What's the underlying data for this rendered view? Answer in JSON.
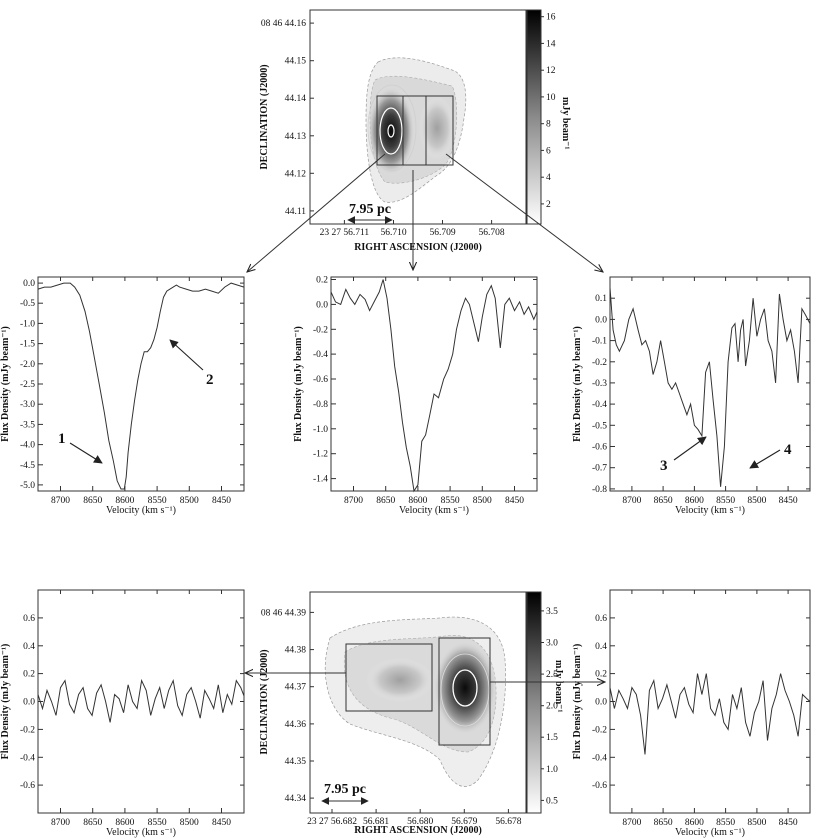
{
  "images": [
    {
      "id": "top",
      "dec_ticks": [
        "08 46 44.16",
        "44.15",
        "44.14",
        "44.13",
        "44.12",
        "44.11"
      ],
      "dec_values": [
        44.16,
        44.15,
        44.14,
        44.13,
        44.12,
        44.11
      ],
      "ra_ticks": [
        "23 27 56.711",
        "56.710",
        "56.709",
        "56.708"
      ],
      "ra_values": [
        56.711,
        56.71,
        56.709,
        56.708
      ],
      "ylabel": "DECLINATION (J2000)",
      "xlabel": "RIGHT ASCENSION (J2000)",
      "colorbar_ticks": [
        "2",
        "4",
        "6",
        "8",
        "10",
        "12",
        "14",
        "16"
      ],
      "colorbar_values": [
        2,
        4,
        6,
        8,
        10,
        12,
        14,
        16
      ],
      "colorbar_range": [
        0.5,
        16.5
      ],
      "colorbar_label": "mJy beam⁻¹",
      "scale_bar": "7.95 pc"
    },
    {
      "id": "bottom",
      "dec_ticks": [
        "08 46 44.39",
        "44.38",
        "44.37",
        "44.36",
        "44.35",
        "44.34"
      ],
      "dec_values": [
        44.39,
        44.38,
        44.37,
        44.36,
        44.35,
        44.34
      ],
      "ra_ticks": [
        "23 27 56.682",
        "56.681",
        "56.680",
        "56.679",
        "56.678"
      ],
      "ra_values": [
        56.682,
        56.681,
        56.68,
        56.679,
        56.678
      ],
      "ylabel": "DECLINATION (J2000)",
      "xlabel": "RIGHT ASCENSION (J2000)",
      "colorbar_ticks": [
        "0.5",
        "1.0",
        "1.5",
        "2.0",
        "2.5",
        "3.0",
        "3.5"
      ],
      "colorbar_values": [
        0.5,
        1.0,
        1.5,
        2.0,
        2.5,
        3.0,
        3.5
      ],
      "colorbar_range": [
        0.3,
        3.8
      ],
      "colorbar_label": "mJy beam⁻¹",
      "scale_bar": "7.95 pc"
    }
  ],
  "annotations": {
    "feature_1": "1",
    "feature_2": "2",
    "feature_3": "3",
    "feature_4": "4"
  },
  "chart_data": [
    {
      "type": "line",
      "id": "spec-top-left",
      "xlabel": "Velocity (km s⁻¹)",
      "ylabel": "Flux Density (mJy beam⁻¹)",
      "xlim": [
        8735,
        8415
      ],
      "ylim": [
        -5.15,
        0.15
      ],
      "xticks": [
        8700,
        8650,
        8600,
        8550,
        8500,
        8450
      ],
      "xtick_labels": [
        "8700",
        "8650",
        "8600",
        "8550",
        "8500",
        "8450"
      ],
      "yticks": [
        0.0,
        -0.5,
        -1.0,
        -1.5,
        -2.0,
        -2.5,
        -3.0,
        -3.5,
        -4.0,
        -4.5,
        -5.0
      ],
      "ytick_labels": [
        "0.0",
        "-0.5",
        "-1.0",
        "-1.5",
        "-2.0",
        "-2.5",
        "-3.0",
        "-3.5",
        "-4.0",
        "-4.5",
        "-5.0"
      ],
      "x": [
        8735,
        8725,
        8715,
        8705,
        8695,
        8685,
        8678,
        8670,
        8662,
        8655,
        8648,
        8640,
        8632,
        8625,
        8618,
        8612,
        8606,
        8601,
        8598,
        8595,
        8590,
        8585,
        8580,
        8575,
        8570,
        8565,
        8560,
        8555,
        8550,
        8545,
        8540,
        8535,
        8530,
        8525,
        8520,
        8515,
        8505,
        8495,
        8485,
        8475,
        8465,
        8455,
        8445,
        8435,
        8425,
        8415
      ],
      "y": [
        -0.15,
        -0.1,
        -0.1,
        -0.05,
        0.0,
        0.0,
        -0.1,
        -0.3,
        -0.7,
        -1.2,
        -1.8,
        -2.5,
        -3.2,
        -3.9,
        -4.4,
        -4.9,
        -5.1,
        -5.1,
        -4.8,
        -4.2,
        -3.5,
        -2.9,
        -2.4,
        -2.0,
        -1.7,
        -1.7,
        -1.6,
        -1.4,
        -1.1,
        -0.7,
        -0.35,
        -0.2,
        -0.15,
        -0.1,
        -0.05,
        -0.1,
        -0.15,
        -0.2,
        -0.2,
        -0.15,
        -0.2,
        -0.25,
        -0.1,
        0.0,
        -0.05,
        -0.1
      ]
    },
    {
      "type": "line",
      "id": "spec-top-middle",
      "xlabel": "Velocity (km s⁻¹)",
      "ylabel": "Flux Density (mJy beam⁻¹)",
      "xlim": [
        8735,
        8415
      ],
      "ylim": [
        -1.5,
        0.22
      ],
      "xticks": [
        8700,
        8650,
        8600,
        8550,
        8500,
        8450
      ],
      "xtick_labels": [
        "8700",
        "8650",
        "8600",
        "8550",
        "8500",
        "8450"
      ],
      "yticks": [
        0.2,
        0.0,
        -0.2,
        -0.4,
        -0.6,
        -0.8,
        -1.0,
        -1.2,
        -1.4
      ],
      "ytick_labels": [
        "0.2",
        "0.0",
        "-0.2",
        "-0.4",
        "-0.6",
        "-0.8",
        "-1.0",
        "-1.2",
        "-1.4"
      ],
      "x": [
        8735,
        8728,
        8720,
        8712,
        8705,
        8698,
        8690,
        8682,
        8675,
        8668,
        8660,
        8654,
        8648,
        8642,
        8636,
        8630,
        8624,
        8618,
        8612,
        8606,
        8600,
        8594,
        8588,
        8582,
        8575,
        8568,
        8560,
        8553,
        8546,
        8540,
        8533,
        8526,
        8520,
        8513,
        8506,
        8500,
        8493,
        8486,
        8480,
        8472,
        8465,
        8458,
        8450,
        8442,
        8435,
        8428,
        8420,
        8415
      ],
      "y": [
        0.1,
        0.02,
        0.0,
        0.12,
        0.05,
        0.0,
        0.08,
        0.04,
        -0.05,
        0.02,
        0.1,
        0.2,
        0.05,
        -0.2,
        -0.5,
        -0.7,
        -0.95,
        -1.15,
        -1.3,
        -1.5,
        -1.45,
        -1.1,
        -1.05,
        -0.9,
        -0.72,
        -0.75,
        -0.6,
        -0.52,
        -0.4,
        -0.2,
        -0.05,
        0.05,
        0.0,
        -0.15,
        -0.3,
        -0.1,
        0.08,
        0.15,
        0.05,
        -0.35,
        0.0,
        0.05,
        -0.05,
        0.02,
        -0.08,
        -0.02,
        -0.12,
        -0.06
      ]
    },
    {
      "type": "line",
      "id": "spec-top-right",
      "xlabel": "Velocity (km s⁻¹)",
      "ylabel": "Flux Density (mJy beam⁻¹)",
      "xlim": [
        8735,
        8415
      ],
      "ylim": [
        -0.81,
        0.2
      ],
      "xticks": [
        8700,
        8650,
        8600,
        8550,
        8500,
        8450
      ],
      "xtick_labels": [
        "8700",
        "8650",
        "8600",
        "8550",
        "8500",
        "8450"
      ],
      "yticks": [
        0.1,
        0.0,
        -0.1,
        -0.2,
        -0.3,
        -0.4,
        -0.5,
        -0.6,
        -0.7,
        -0.8
      ],
      "ytick_labels": [
        "0.1",
        "0.0",
        "-0.1",
        "-0.2",
        "-0.3",
        "-0.4",
        "-0.5",
        "-0.6",
        "-0.7",
        "-0.8"
      ],
      "x": [
        8735,
        8730,
        8725,
        8720,
        8712,
        8705,
        8698,
        8690,
        8684,
        8678,
        8672,
        8666,
        8660,
        8654,
        8648,
        8642,
        8636,
        8630,
        8624,
        8618,
        8612,
        8606,
        8600,
        8594,
        8588,
        8582,
        8576,
        8570,
        8564,
        8558,
        8552,
        8546,
        8540,
        8535,
        8530,
        8526,
        8522,
        8518,
        8512,
        8506,
        8500,
        8494,
        8488,
        8482,
        8476,
        8470,
        8464,
        8458,
        8452,
        8446,
        8440,
        8434,
        8428,
        8422,
        8415
      ],
      "y": [
        0.15,
        -0.05,
        -0.12,
        -0.15,
        -0.1,
        0.0,
        0.05,
        -0.05,
        -0.12,
        -0.1,
        -0.15,
        -0.26,
        -0.2,
        -0.1,
        -0.2,
        -0.3,
        -0.33,
        -0.3,
        -0.35,
        -0.4,
        -0.45,
        -0.4,
        -0.5,
        -0.52,
        -0.55,
        -0.25,
        -0.2,
        -0.38,
        -0.55,
        -0.79,
        -0.6,
        -0.2,
        -0.04,
        -0.02,
        -0.2,
        -0.05,
        0.0,
        -0.22,
        -0.1,
        0.1,
        -0.08,
        0.0,
        0.05,
        -0.1,
        -0.15,
        -0.3,
        0.12,
        0.0,
        -0.1,
        -0.05,
        -0.15,
        -0.3,
        0.05,
        0.02,
        -0.02
      ]
    },
    {
      "type": "line",
      "id": "spec-bottom-left",
      "xlabel": "Velocity (km s⁻¹)",
      "ylabel": "Flux Density (mJy beam⁻¹)",
      "xlim": [
        8735,
        8415
      ],
      "ylim": [
        -0.8,
        0.8
      ],
      "xticks": [
        8700,
        8650,
        8600,
        8550,
        8500,
        8450
      ],
      "xtick_labels": [
        "8700",
        "8650",
        "8600",
        "8550",
        "8500",
        "8450"
      ],
      "yticks": [
        0.6,
        0.4,
        0.2,
        0.0,
        -0.2,
        -0.4,
        -0.6
      ],
      "ytick_labels": [
        "0.6",
        "0.4",
        "0.2",
        "0.0",
        "-0.2",
        "-0.4",
        "-0.6"
      ],
      "x": [
        8735,
        8728,
        8721,
        8714,
        8707,
        8700,
        8693,
        8686,
        8679,
        8672,
        8665,
        8658,
        8651,
        8644,
        8637,
        8630,
        8623,
        8616,
        8609,
        8602,
        8595,
        8588,
        8581,
        8574,
        8567,
        8560,
        8553,
        8546,
        8539,
        8532,
        8525,
        8518,
        8511,
        8504,
        8497,
        8490,
        8483,
        8476,
        8469,
        8462,
        8455,
        8448,
        8441,
        8434,
        8427,
        8420,
        8415
      ],
      "y": [
        0.05,
        -0.05,
        0.08,
        0.0,
        -0.1,
        0.1,
        0.15,
        -0.02,
        -0.08,
        0.05,
        0.1,
        -0.05,
        -0.1,
        0.06,
        0.12,
        0.0,
        -0.15,
        0.05,
        0.02,
        -0.08,
        0.12,
        0.0,
        -0.05,
        0.15,
        0.08,
        -0.1,
        0.02,
        0.1,
        -0.05,
        0.08,
        0.15,
        -0.03,
        -0.1,
        0.05,
        0.1,
        0.0,
        -0.12,
        0.08,
        0.02,
        -0.05,
        0.12,
        -0.08,
        0.05,
        -0.02,
        0.15,
        0.1,
        0.04
      ]
    },
    {
      "type": "line",
      "id": "spec-bottom-right",
      "xlabel": "Velocity (km s⁻¹)",
      "ylabel": "Flux Density (mJy beam⁻¹)",
      "xlim": [
        8735,
        8415
      ],
      "ylim": [
        -0.8,
        0.8
      ],
      "xticks": [
        8700,
        8650,
        8600,
        8550,
        8500,
        8450
      ],
      "xtick_labels": [
        "8700",
        "8650",
        "8600",
        "8550",
        "8500",
        "8450"
      ],
      "yticks": [
        0.6,
        0.4,
        0.2,
        0.0,
        -0.2,
        -0.4,
        -0.6
      ],
      "ytick_labels": [
        "0.6",
        "0.4",
        "0.2",
        "0.0",
        "-0.2",
        "-0.4",
        "-0.6"
      ],
      "x": [
        8735,
        8728,
        8721,
        8714,
        8707,
        8700,
        8693,
        8686,
        8679,
        8672,
        8665,
        8658,
        8651,
        8644,
        8637,
        8630,
        8623,
        8616,
        8609,
        8602,
        8595,
        8588,
        8581,
        8574,
        8567,
        8560,
        8553,
        8546,
        8539,
        8532,
        8525,
        8518,
        8511,
        8504,
        8497,
        8490,
        8483,
        8476,
        8469,
        8462,
        8455,
        8448,
        8441,
        8434,
        8427,
        8420,
        8415
      ],
      "y": [
        0.1,
        -0.05,
        0.08,
        0.02,
        -0.05,
        0.1,
        0.05,
        -0.1,
        -0.38,
        0.08,
        0.15,
        -0.05,
        0.02,
        0.12,
        0.0,
        -0.12,
        0.05,
        0.1,
        -0.02,
        -0.08,
        0.2,
        0.05,
        0.2,
        -0.05,
        -0.1,
        0.02,
        -0.15,
        -0.2,
        0.05,
        -0.05,
        0.1,
        -0.15,
        -0.25,
        -0.08,
        0.0,
        0.15,
        -0.28,
        -0.05,
        0.05,
        0.2,
        0.08,
        0.0,
        -0.1,
        -0.25,
        0.05,
        0.02,
        0.0
      ]
    }
  ]
}
